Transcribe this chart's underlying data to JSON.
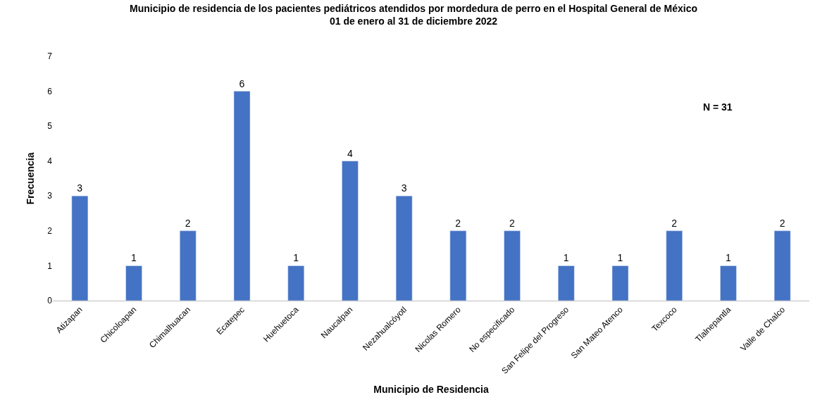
{
  "chart_data": {
    "type": "bar",
    "title": "Municipio de residencia de los pacientes pediátricos atendidos por mordedura de perro en el Hospital General de México\n01 de enero al 31 de diciembre 2022",
    "xlabel": "Municipio de Residencia",
    "ylabel": "Frecuencia",
    "categories": [
      "Atizapan",
      "Chicoloapan",
      "Chimalhuacan",
      "Ecatepec",
      "Huehuetoca",
      "Naucalpan",
      "Nezahualcóyotl",
      "Nicolas Romero",
      "No especificado",
      "San Felipe del Progreso",
      "San Mateo Atenco",
      "Texcoco",
      "Tlalnepantla",
      "Valle de Chalco"
    ],
    "values": [
      3,
      1,
      2,
      6,
      1,
      4,
      3,
      2,
      2,
      1,
      1,
      2,
      1,
      2
    ],
    "color": "#4472c4",
    "ylim": [
      0,
      7
    ],
    "yticks": [
      0,
      1,
      2,
      3,
      4,
      5,
      6,
      7
    ],
    "grid": false,
    "legend": false,
    "data_labels": true,
    "annotations": [
      "N = 31"
    ]
  }
}
